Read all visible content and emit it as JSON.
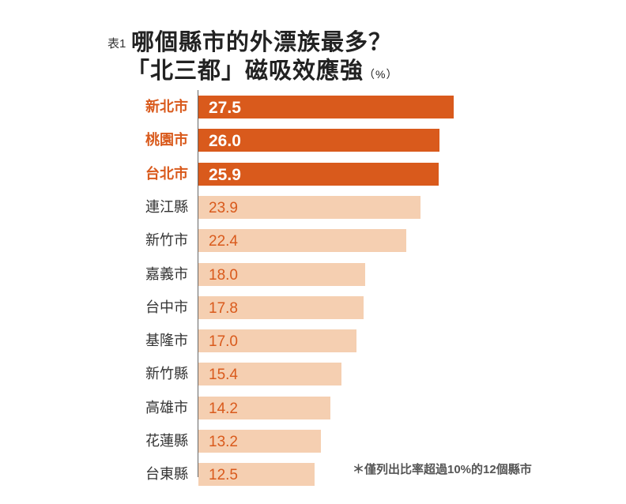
{
  "title": {
    "prefix": "表1",
    "line1": "哪個縣市的外漂族最多？",
    "line2": "「北三都」磁吸效應強",
    "unit": "（%）"
  },
  "note": "＊僅列出比率超過10%的12個縣市",
  "colors": {
    "highlight": "#d95a1c",
    "normal": "#f5cfb1",
    "normal_text": "#d95a1c"
  },
  "chart_data": {
    "type": "bar",
    "orientation": "horizontal",
    "categories": [
      "新北市",
      "桃園市",
      "台北市",
      "連江縣",
      "新竹市",
      "嘉義市",
      "台中市",
      "基隆市",
      "新竹縣",
      "高雄市",
      "花蓮縣",
      "台東縣"
    ],
    "values": [
      27.5,
      26.0,
      25.9,
      23.9,
      22.4,
      18.0,
      17.8,
      17.0,
      15.4,
      14.2,
      13.2,
      12.5
    ],
    "value_labels": [
      "27.5",
      "26.0",
      "25.9",
      "23.9",
      "22.4",
      "18.0",
      "17.8",
      "17.0",
      "15.4",
      "14.2",
      "13.2",
      "12.5"
    ],
    "highlighted": [
      0,
      1,
      2
    ],
    "xlim": [
      0,
      27.5
    ],
    "grid": false,
    "legend": "none"
  }
}
